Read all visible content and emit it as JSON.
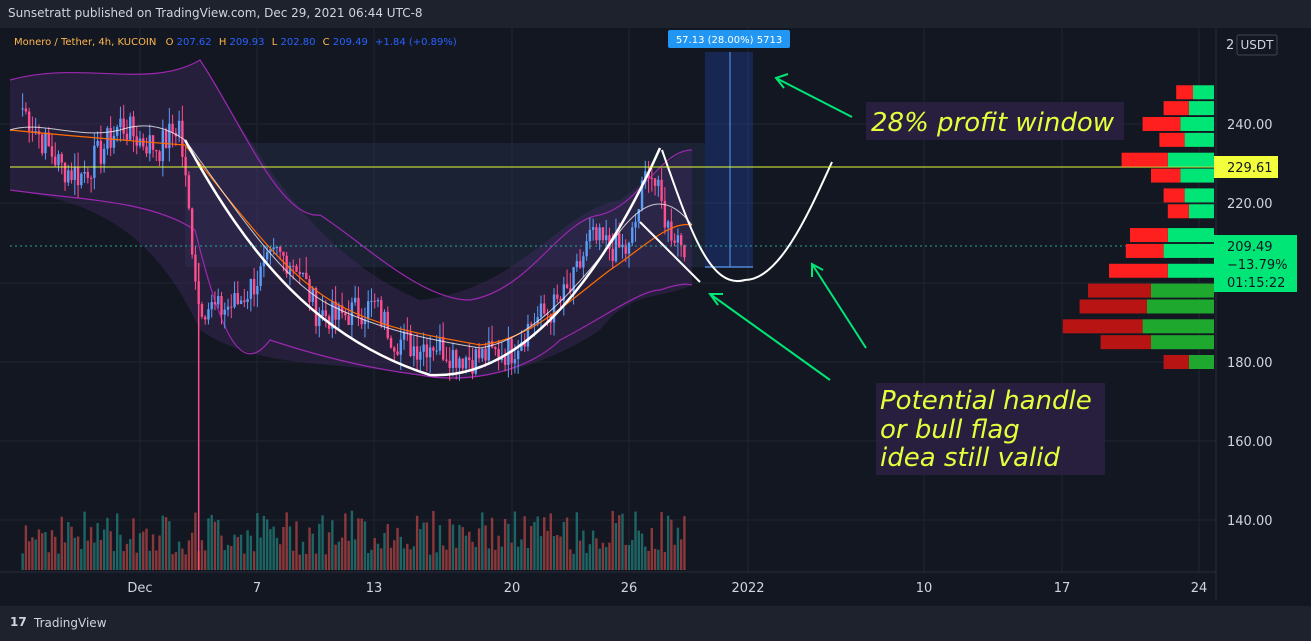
{
  "publisher_line": "Sunsetratt published on TradingView.com, Dec 29, 2021 06:44 UTC-8",
  "brand": "TradingView",
  "colors": {
    "background": "#131722",
    "up": "#26a69a",
    "down": "#ef5350",
    "candle_up": "#5b9cf6",
    "candle_down": "#ff4d8d",
    "bollinger": "#9c27b0",
    "ema_fast": "#ffffff",
    "ema_slow": "#ff6d00",
    "annotation": "#e6ff3c",
    "arrow": "#00e676"
  },
  "chart_data": {
    "type": "candlestick",
    "symbol_line": {
      "symbol": "Monero / Tether, 4h, KUCOIN",
      "o_label": "O",
      "o_value": "207.62",
      "h_label": "H",
      "h_value": "209.93",
      "l_label": "L",
      "l_value": "202.80",
      "c_label": "C",
      "c_value": "209.49",
      "change": "+1.84 (+0.89%)"
    },
    "currency_label": "USDT",
    "axis_top_label": "2",
    "y_ticks": [
      "240.00",
      "220.00",
      "180.00",
      "160.00",
      "140.00"
    ],
    "x_ticks": [
      "Dec",
      "7",
      "13",
      "20",
      "26",
      "2022",
      "10",
      "17",
      "24"
    ],
    "price_labels": {
      "level_price": "229.61",
      "last_price": "209.49",
      "last_change": "−13.79%",
      "countdown": "01:15:22"
    },
    "measure_label": "57.13 (28.00%) 5713",
    "annotations": {
      "profit_window": "28% profit window",
      "handle_line1": "Potential handle",
      "handle_line2": "or bull flag",
      "handle_line3": "idea still valid"
    },
    "price_path": [
      [
        "2021-11-25",
        244
      ],
      [
        "2021-11-26",
        236
      ],
      [
        "2021-11-27",
        229
      ],
      [
        "2021-11-28",
        227
      ],
      [
        "2021-11-29",
        233
      ],
      [
        "2021-11-30",
        240
      ],
      [
        "2021-12-01",
        236
      ],
      [
        "2021-12-02",
        234
      ],
      [
        "2021-12-03",
        240
      ],
      [
        "2021-12-04",
        195
      ],
      [
        "2021-12-05",
        193
      ],
      [
        "2021-12-06",
        195
      ],
      [
        "2021-12-07",
        201
      ],
      [
        "2021-12-08",
        207
      ],
      [
        "2021-12-09",
        205
      ],
      [
        "2021-12-10",
        193
      ],
      [
        "2021-12-11",
        191
      ],
      [
        "2021-12-12",
        193
      ],
      [
        "2021-12-13",
        194
      ],
      [
        "2021-12-14",
        186
      ],
      [
        "2021-12-15",
        184
      ],
      [
        "2021-12-16",
        185
      ],
      [
        "2021-12-17",
        182
      ],
      [
        "2021-12-18",
        181
      ],
      [
        "2021-12-19",
        182
      ],
      [
        "2021-12-20",
        183
      ],
      [
        "2021-12-21",
        190
      ],
      [
        "2021-12-22",
        193
      ],
      [
        "2021-12-23",
        198
      ],
      [
        "2021-12-24",
        211
      ],
      [
        "2021-12-25",
        209
      ],
      [
        "2021-12-26",
        208
      ],
      [
        "2021-12-27",
        230
      ],
      [
        "2021-12-28",
        214
      ],
      [
        "2021-12-29",
        209.49
      ]
    ],
    "volume_profile": [
      {
        "price": 248,
        "sell": 8,
        "buy": 10
      },
      {
        "price": 244,
        "sell": 12,
        "buy": 12
      },
      {
        "price": 240,
        "sell": 18,
        "buy": 16
      },
      {
        "price": 236,
        "sell": 12,
        "buy": 14
      },
      {
        "price": 231,
        "sell": 22,
        "buy": 22
      },
      {
        "price": 227,
        "sell": 14,
        "buy": 16
      },
      {
        "price": 222,
        "sell": 10,
        "buy": 14
      },
      {
        "price": 218,
        "sell": 10,
        "buy": 12
      },
      {
        "price": 212,
        "sell": 18,
        "buy": 22
      },
      {
        "price": 208,
        "sell": 18,
        "buy": 24
      },
      {
        "price": 203,
        "sell": 28,
        "buy": 22
      },
      {
        "price": 198,
        "sell": 30,
        "buy": 30
      },
      {
        "price": 194,
        "sell": 32,
        "buy": 32
      },
      {
        "price": 189,
        "sell": 38,
        "buy": 34
      },
      {
        "price": 185,
        "sell": 24,
        "buy": 30
      },
      {
        "price": 180,
        "sell": 12,
        "buy": 12
      }
    ],
    "ylim": [
      130,
      255
    ]
  }
}
